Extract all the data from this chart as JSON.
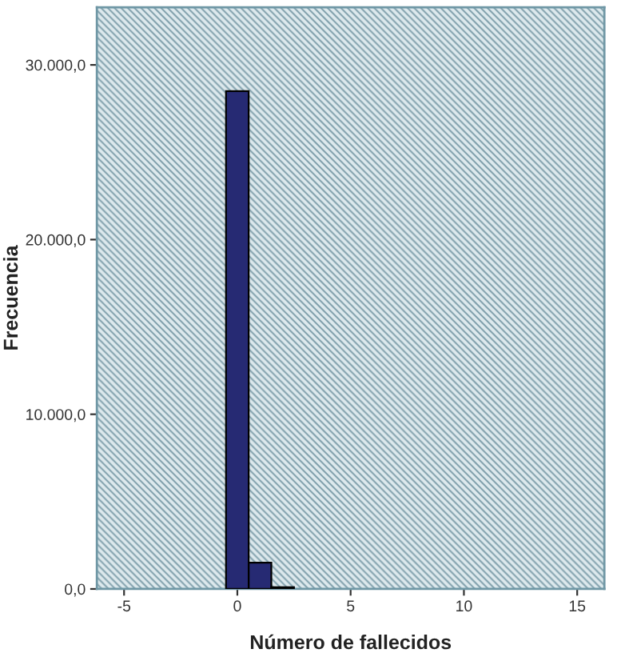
{
  "chart_data": {
    "type": "histogram",
    "xlabel": "Número de fallecidos",
    "ylabel": "Frecuencia",
    "bins": [
      -0.5,
      0.5,
      1.5,
      2.5
    ],
    "values": [
      28500,
      1500,
      100
    ],
    "color": "#262a73",
    "xlim": [
      -6.2,
      16.2
    ],
    "xticks": [
      -5,
      0,
      5,
      10,
      15
    ],
    "ylim": [
      0,
      33300
    ],
    "yticks": [
      {
        "value": 0,
        "label": "0,0"
      },
      {
        "value": 10000,
        "label": "10.000,0"
      },
      {
        "value": 20000,
        "label": "20.000,0"
      },
      {
        "value": 30000,
        "label": "30.000,0"
      }
    ]
  }
}
